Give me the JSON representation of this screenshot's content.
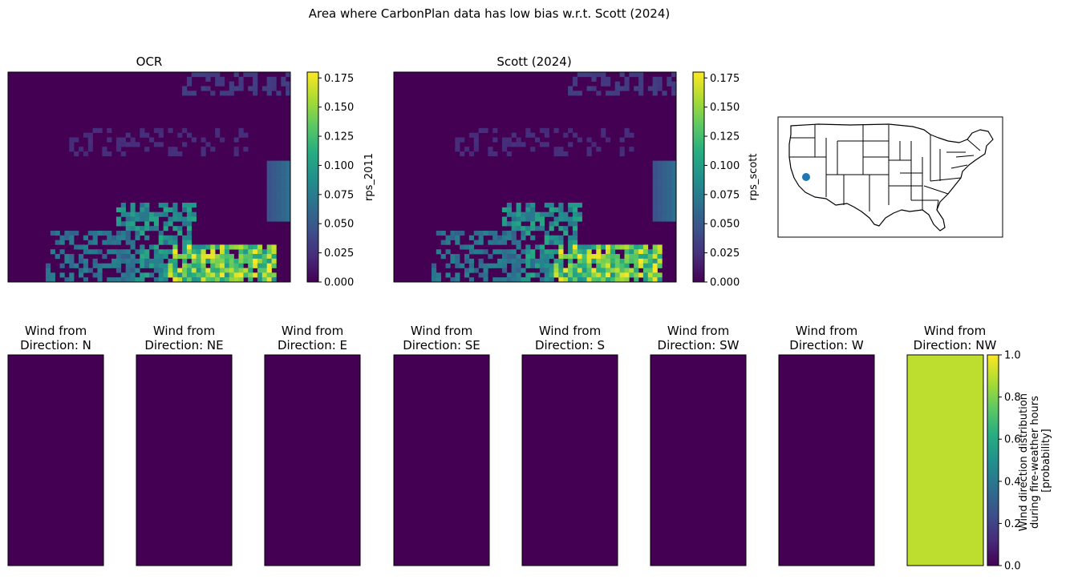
{
  "suptitle": "Area where CarbonPlan data has low bias w.r.t. Scott (2024)",
  "colormap": "viridis",
  "chart_data": [
    {
      "type": "heatmap",
      "title": "OCR",
      "colorbar_label": "rps_2011",
      "vmin": 0,
      "vmax": 0.18,
      "colorbar_ticks": [
        "0.000",
        "0.025",
        "0.050",
        "0.075",
        "0.100",
        "0.125",
        "0.150",
        "0.175"
      ],
      "colorbar_tick_values": [
        0,
        0.025,
        0.05,
        0.075,
        0.1,
        0.125,
        0.15,
        0.175
      ]
    },
    {
      "type": "heatmap",
      "title": "Scott (2024)",
      "colorbar_label": "rps_scott",
      "vmin": 0,
      "vmax": 0.18,
      "colorbar_ticks": [
        "0.000",
        "0.025",
        "0.050",
        "0.075",
        "0.100",
        "0.125",
        "0.150",
        "0.175"
      ],
      "colorbar_tick_values": [
        0,
        0.025,
        0.05,
        0.075,
        0.1,
        0.125,
        0.15,
        0.175
      ]
    },
    {
      "type": "heatmap",
      "series_type": "wind-direction-panels",
      "panels": [
        {
          "title_line1": "Wind from",
          "title_line2": "Direction: N",
          "value": 0.0
        },
        {
          "title_line1": "Wind from",
          "title_line2": "Direction: NE",
          "value": 0.0
        },
        {
          "title_line1": "Wind from",
          "title_line2": "Direction: E",
          "value": 0.0
        },
        {
          "title_line1": "Wind from",
          "title_line2": "Direction: SE",
          "value": 0.0
        },
        {
          "title_line1": "Wind from",
          "title_line2": "Direction: S",
          "value": 0.0
        },
        {
          "title_line1": "Wind from",
          "title_line2": "Direction: SW",
          "value": 0.0
        },
        {
          "title_line1": "Wind from",
          "title_line2": "Direction: W",
          "value": 0.0
        },
        {
          "title_line1": "Wind from",
          "title_line2": "Direction: NW",
          "value": 0.9
        }
      ],
      "vmin": 0,
      "vmax": 1,
      "colorbar_label_lines": [
        "Wind direction distribution",
        "during fire-weather hours",
        "[probability]"
      ],
      "colorbar_ticks": [
        "0.0",
        "0.2",
        "0.4",
        "0.6",
        "0.8",
        "1.0"
      ],
      "colorbar_tick_values": [
        0,
        0.2,
        0.4,
        0.6,
        0.8,
        1.0
      ]
    }
  ],
  "location_map": {
    "region": "CONUS state boundaries",
    "marker_color": "#1f77b4",
    "marker_location": "southern Nevada / California border"
  }
}
